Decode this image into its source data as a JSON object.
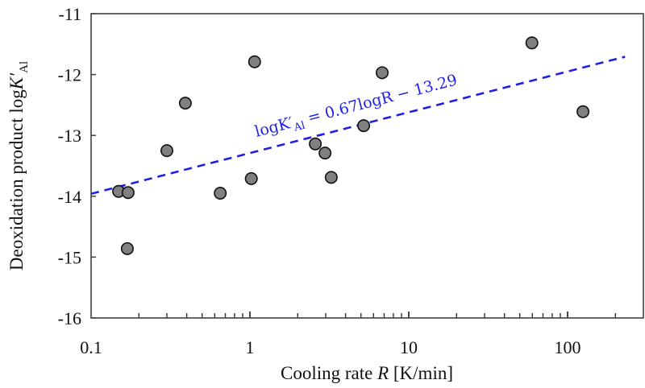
{
  "chart_data": {
    "type": "scatter",
    "title": "",
    "xlabel": "Cooling rate ",
    "xlabel_var": "R",
    "xlabel_unit": " [K/min]",
    "ylabel": "Deoxidation product log",
    "ylabel_var": "K′",
    "ylabel_sub": "Al",
    "xscale": "log",
    "xlim": [
      0.1,
      300
    ],
    "ylim": [
      -16,
      -11
    ],
    "x_ticks": [
      0.1,
      1,
      10,
      100
    ],
    "x_tick_labels": [
      "0.1",
      "1",
      "10",
      "100"
    ],
    "y_ticks": [
      -16,
      -15,
      -14,
      -13,
      -12,
      -11
    ],
    "y_tick_labels": [
      "-16",
      "-15",
      "-14",
      "-13",
      "-12",
      "-11"
    ],
    "grid": false,
    "series": [
      {
        "name": "data",
        "marker": "circle",
        "color": "#808080",
        "edgecolor": "#111111",
        "points": [
          {
            "x": 0.149,
            "y": -13.92
          },
          {
            "x": 0.171,
            "y": -13.94
          },
          {
            "x": 0.169,
            "y": -14.86
          },
          {
            "x": 0.3,
            "y": -13.25
          },
          {
            "x": 0.392,
            "y": -12.47
          },
          {
            "x": 0.65,
            "y": -13.95
          },
          {
            "x": 1.02,
            "y": -13.71
          },
          {
            "x": 1.07,
            "y": -11.79
          },
          {
            "x": 2.58,
            "y": -13.14
          },
          {
            "x": 2.97,
            "y": -13.29
          },
          {
            "x": 3.25,
            "y": -13.69
          },
          {
            "x": 5.2,
            "y": -12.84
          },
          {
            "x": 6.8,
            "y": -11.97
          },
          {
            "x": 59.6,
            "y": -11.48
          },
          {
            "x": 125,
            "y": -12.61
          }
        ]
      }
    ],
    "fit": {
      "name": "regression",
      "slope": 0.67,
      "intercept": -13.29,
      "x_range": [
        0.1,
        230
      ],
      "color": "#1f1fe6",
      "style": "dashed",
      "label_parts": {
        "pre": "logK′",
        "sub": "Al",
        "post": " = 0.67logR − 13.29"
      }
    }
  }
}
